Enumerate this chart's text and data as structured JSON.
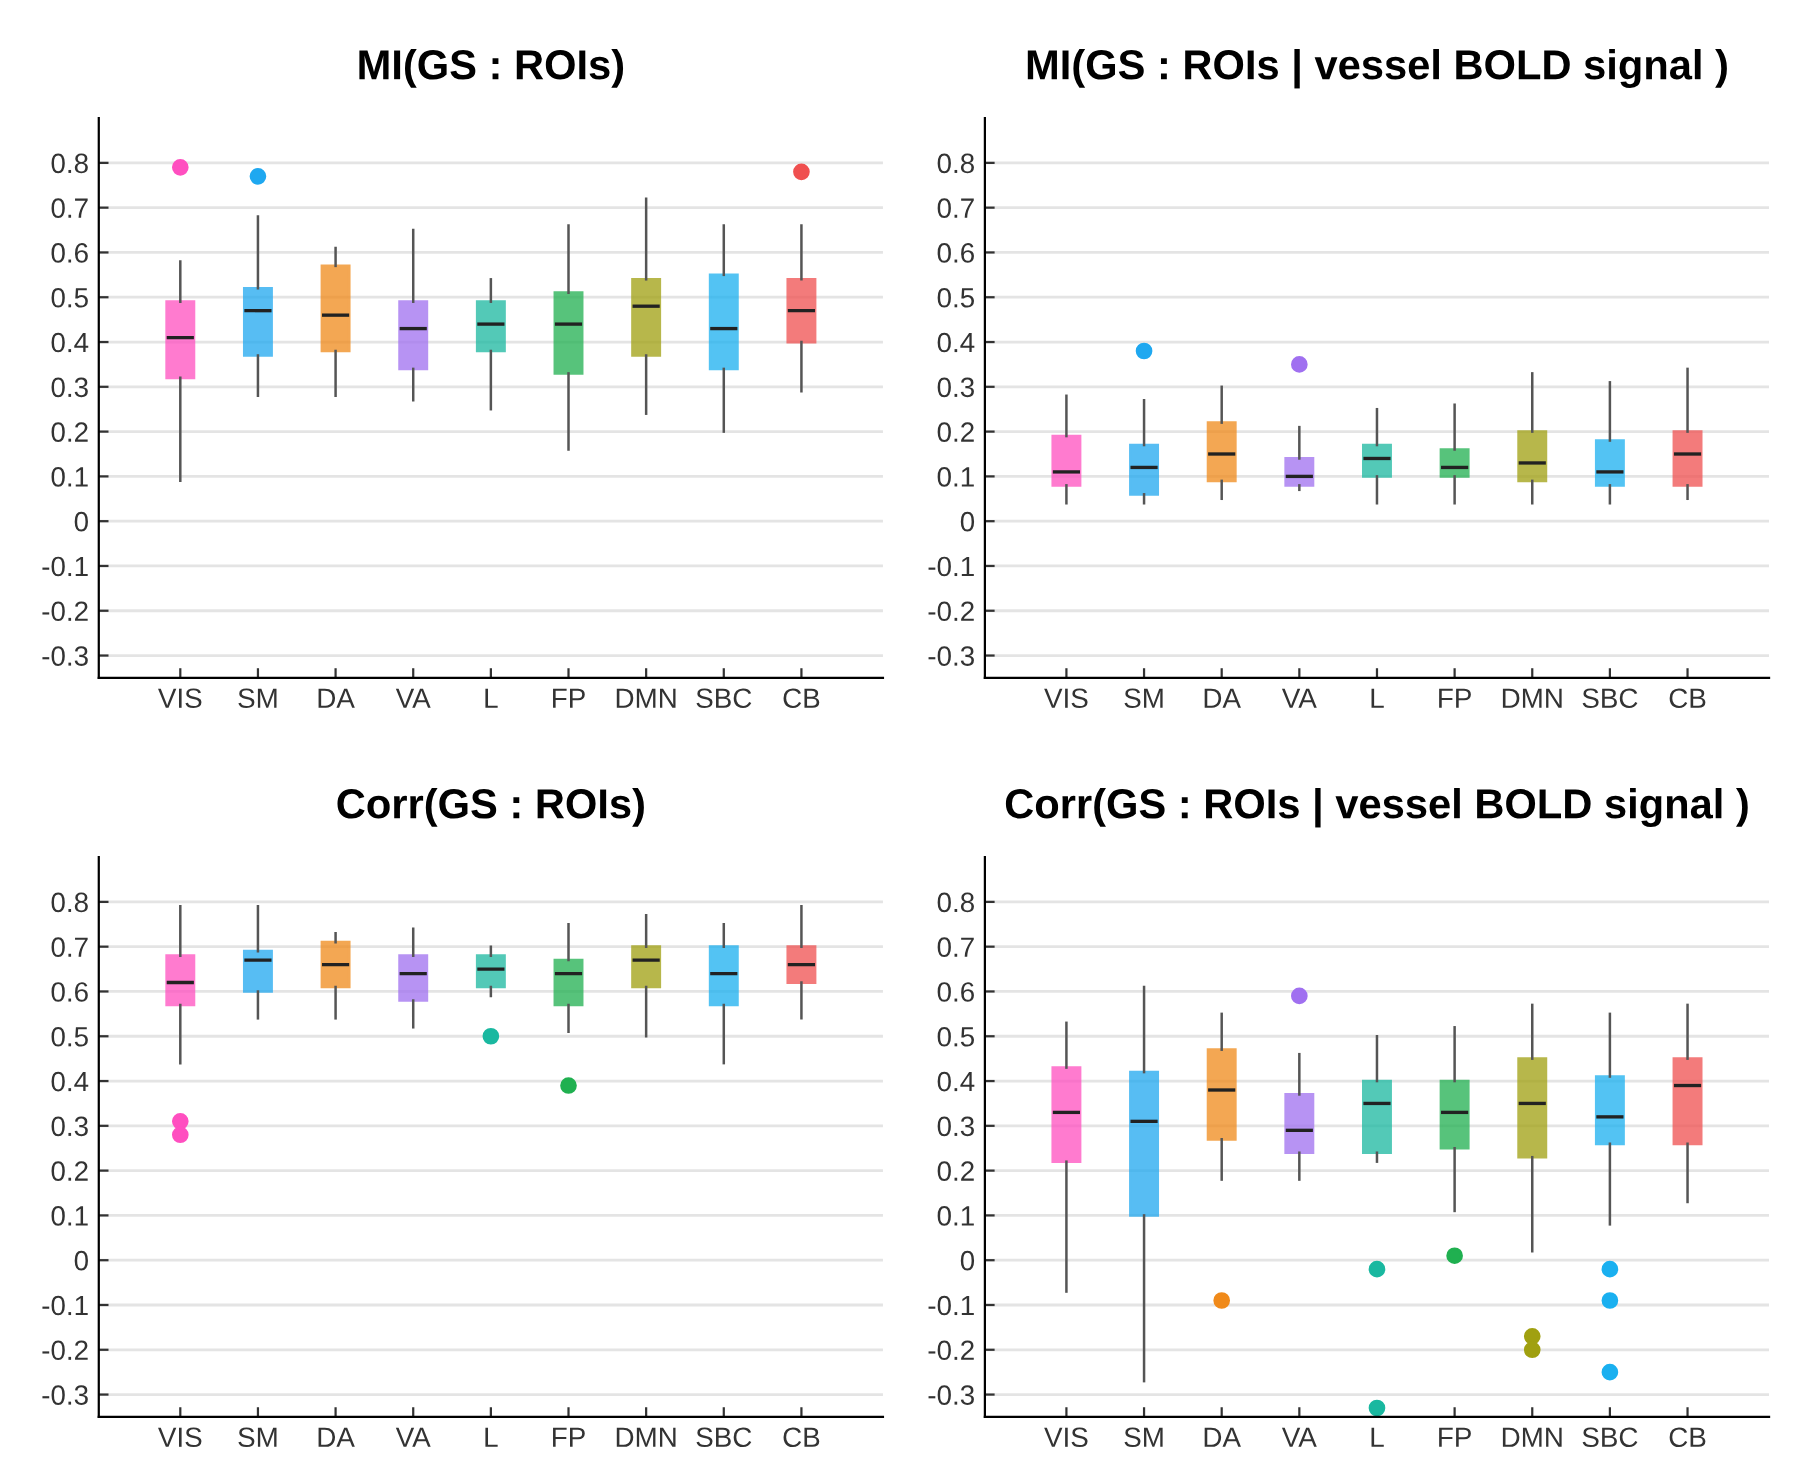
{
  "chart_data": [
    {
      "type": "box",
      "title": "MI(GS : ROIs)",
      "categories": [
        "VIS",
        "SM",
        "DA",
        "VA",
        "L",
        "FP",
        "DMN",
        "SBC",
        "CB"
      ],
      "colors": [
        "#ff4fc0",
        "#1fa8f0",
        "#f08a1a",
        "#a070f0",
        "#1ab8a0",
        "#20b050",
        "#a0a010",
        "#1ab0f0",
        "#f05050"
      ],
      "boxes": [
        {
          "low": 0.09,
          "q1": 0.32,
          "median": 0.41,
          "q3": 0.49,
          "high": 0.58,
          "outliers": [
            0.79
          ]
        },
        {
          "low": 0.28,
          "q1": 0.37,
          "median": 0.47,
          "q3": 0.52,
          "high": 0.68,
          "outliers": [
            0.77
          ]
        },
        {
          "low": 0.28,
          "q1": 0.38,
          "median": 0.46,
          "q3": 0.57,
          "high": 0.61
        },
        {
          "low": 0.27,
          "q1": 0.34,
          "median": 0.43,
          "q3": 0.49,
          "high": 0.65
        },
        {
          "low": 0.25,
          "q1": 0.38,
          "median": 0.44,
          "q3": 0.49,
          "high": 0.54
        },
        {
          "low": 0.16,
          "q1": 0.33,
          "median": 0.44,
          "q3": 0.51,
          "high": 0.66
        },
        {
          "low": 0.24,
          "q1": 0.37,
          "median": 0.48,
          "q3": 0.54,
          "high": 0.72
        },
        {
          "low": 0.2,
          "q1": 0.34,
          "median": 0.43,
          "q3": 0.55,
          "high": 0.66
        },
        {
          "low": 0.29,
          "q1": 0.4,
          "median": 0.47,
          "q3": 0.54,
          "high": 0.66,
          "outliers": [
            0.78
          ]
        }
      ],
      "ylim": [
        -0.35,
        0.9
      ],
      "yticks": [
        -0.3,
        -0.2,
        -0.1,
        0,
        0.1,
        0.2,
        0.3,
        0.4,
        0.5,
        0.6,
        0.7,
        0.8
      ],
      "grid": "y"
    },
    {
      "type": "box",
      "title": "MI(GS : ROIs | vessel BOLD signal )",
      "categories": [
        "VIS",
        "SM",
        "DA",
        "VA",
        "L",
        "FP",
        "DMN",
        "SBC",
        "CB"
      ],
      "colors": [
        "#ff4fc0",
        "#1fa8f0",
        "#f08a1a",
        "#a070f0",
        "#1ab8a0",
        "#20b050",
        "#a0a010",
        "#1ab0f0",
        "#f05050"
      ],
      "boxes": [
        {
          "low": 0.04,
          "q1": 0.08,
          "median": 0.11,
          "q3": 0.19,
          "high": 0.28
        },
        {
          "low": 0.04,
          "q1": 0.06,
          "median": 0.12,
          "q3": 0.17,
          "high": 0.27,
          "outliers": [
            0.38
          ]
        },
        {
          "low": 0.05,
          "q1": 0.09,
          "median": 0.15,
          "q3": 0.22,
          "high": 0.3
        },
        {
          "low": 0.07,
          "q1": 0.08,
          "median": 0.1,
          "q3": 0.14,
          "high": 0.21,
          "outliers": [
            0.35
          ]
        },
        {
          "low": 0.04,
          "q1": 0.1,
          "median": 0.14,
          "q3": 0.17,
          "high": 0.25
        },
        {
          "low": 0.04,
          "q1": 0.1,
          "median": 0.12,
          "q3": 0.16,
          "high": 0.26
        },
        {
          "low": 0.04,
          "q1": 0.09,
          "median": 0.13,
          "q3": 0.2,
          "high": 0.33
        },
        {
          "low": 0.04,
          "q1": 0.08,
          "median": 0.11,
          "q3": 0.18,
          "high": 0.31
        },
        {
          "low": 0.05,
          "q1": 0.08,
          "median": 0.15,
          "q3": 0.2,
          "high": 0.34
        }
      ],
      "ylim": [
        -0.35,
        0.9
      ],
      "yticks": [
        -0.3,
        -0.2,
        -0.1,
        0,
        0.1,
        0.2,
        0.3,
        0.4,
        0.5,
        0.6,
        0.7,
        0.8
      ],
      "grid": "y"
    },
    {
      "type": "box",
      "title": "Corr(GS : ROIs)",
      "categories": [
        "VIS",
        "SM",
        "DA",
        "VA",
        "L",
        "FP",
        "DMN",
        "SBC",
        "CB"
      ],
      "colors": [
        "#ff4fc0",
        "#1fa8f0",
        "#f08a1a",
        "#a070f0",
        "#1ab8a0",
        "#20b050",
        "#a0a010",
        "#1ab0f0",
        "#f05050"
      ],
      "boxes": [
        {
          "low": 0.44,
          "q1": 0.57,
          "median": 0.62,
          "q3": 0.68,
          "high": 0.79,
          "outliers": [
            0.31,
            0.28
          ]
        },
        {
          "low": 0.54,
          "q1": 0.6,
          "median": 0.67,
          "q3": 0.69,
          "high": 0.79
        },
        {
          "low": 0.54,
          "q1": 0.61,
          "median": 0.66,
          "q3": 0.71,
          "high": 0.73
        },
        {
          "low": 0.52,
          "q1": 0.58,
          "median": 0.64,
          "q3": 0.68,
          "high": 0.74
        },
        {
          "low": 0.59,
          "q1": 0.61,
          "median": 0.65,
          "q3": 0.68,
          "high": 0.7,
          "outliers": [
            0.5
          ]
        },
        {
          "low": 0.51,
          "q1": 0.57,
          "median": 0.64,
          "q3": 0.67,
          "high": 0.75,
          "outliers": [
            0.39
          ]
        },
        {
          "low": 0.5,
          "q1": 0.61,
          "median": 0.67,
          "q3": 0.7,
          "high": 0.77
        },
        {
          "low": 0.44,
          "q1": 0.57,
          "median": 0.64,
          "q3": 0.7,
          "high": 0.75
        },
        {
          "low": 0.54,
          "q1": 0.62,
          "median": 0.66,
          "q3": 0.7,
          "high": 0.79
        }
      ],
      "ylim": [
        -0.35,
        0.9
      ],
      "yticks": [
        -0.3,
        -0.2,
        -0.1,
        0,
        0.1,
        0.2,
        0.3,
        0.4,
        0.5,
        0.6,
        0.7,
        0.8
      ],
      "grid": "y"
    },
    {
      "type": "box",
      "title": "Corr(GS : ROIs | vessel BOLD signal )",
      "categories": [
        "VIS",
        "SM",
        "DA",
        "VA",
        "L",
        "FP",
        "DMN",
        "SBC",
        "CB"
      ],
      "colors": [
        "#ff4fc0",
        "#1fa8f0",
        "#f08a1a",
        "#a070f0",
        "#1ab8a0",
        "#20b050",
        "#a0a010",
        "#1ab0f0",
        "#f05050"
      ],
      "boxes": [
        {
          "low": -0.07,
          "q1": 0.22,
          "median": 0.33,
          "q3": 0.43,
          "high": 0.53
        },
        {
          "low": -0.27,
          "q1": 0.1,
          "median": 0.31,
          "q3": 0.42,
          "high": 0.61
        },
        {
          "low": 0.18,
          "q1": 0.27,
          "median": 0.38,
          "q3": 0.47,
          "high": 0.55,
          "outliers": [
            -0.09
          ]
        },
        {
          "low": 0.18,
          "q1": 0.24,
          "median": 0.29,
          "q3": 0.37,
          "high": 0.46,
          "outliers": [
            0.59
          ]
        },
        {
          "low": 0.22,
          "q1": 0.24,
          "median": 0.35,
          "q3": 0.4,
          "high": 0.5,
          "outliers": [
            -0.02,
            -0.33
          ]
        },
        {
          "low": 0.11,
          "q1": 0.25,
          "median": 0.33,
          "q3": 0.4,
          "high": 0.52,
          "outliers": [
            0.01
          ]
        },
        {
          "low": 0.02,
          "q1": 0.23,
          "median": 0.35,
          "q3": 0.45,
          "high": 0.57,
          "outliers": [
            -0.17,
            -0.2
          ]
        },
        {
          "low": 0.08,
          "q1": 0.26,
          "median": 0.32,
          "q3": 0.41,
          "high": 0.55,
          "outliers": [
            -0.02,
            -0.09,
            -0.25
          ]
        },
        {
          "low": 0.13,
          "q1": 0.26,
          "median": 0.39,
          "q3": 0.45,
          "high": 0.57
        }
      ],
      "ylim": [
        -0.35,
        0.9
      ],
      "yticks": [
        -0.3,
        -0.2,
        -0.1,
        0,
        0.1,
        0.2,
        0.3,
        0.4,
        0.5,
        0.6,
        0.7,
        0.8
      ],
      "grid": "y"
    }
  ]
}
